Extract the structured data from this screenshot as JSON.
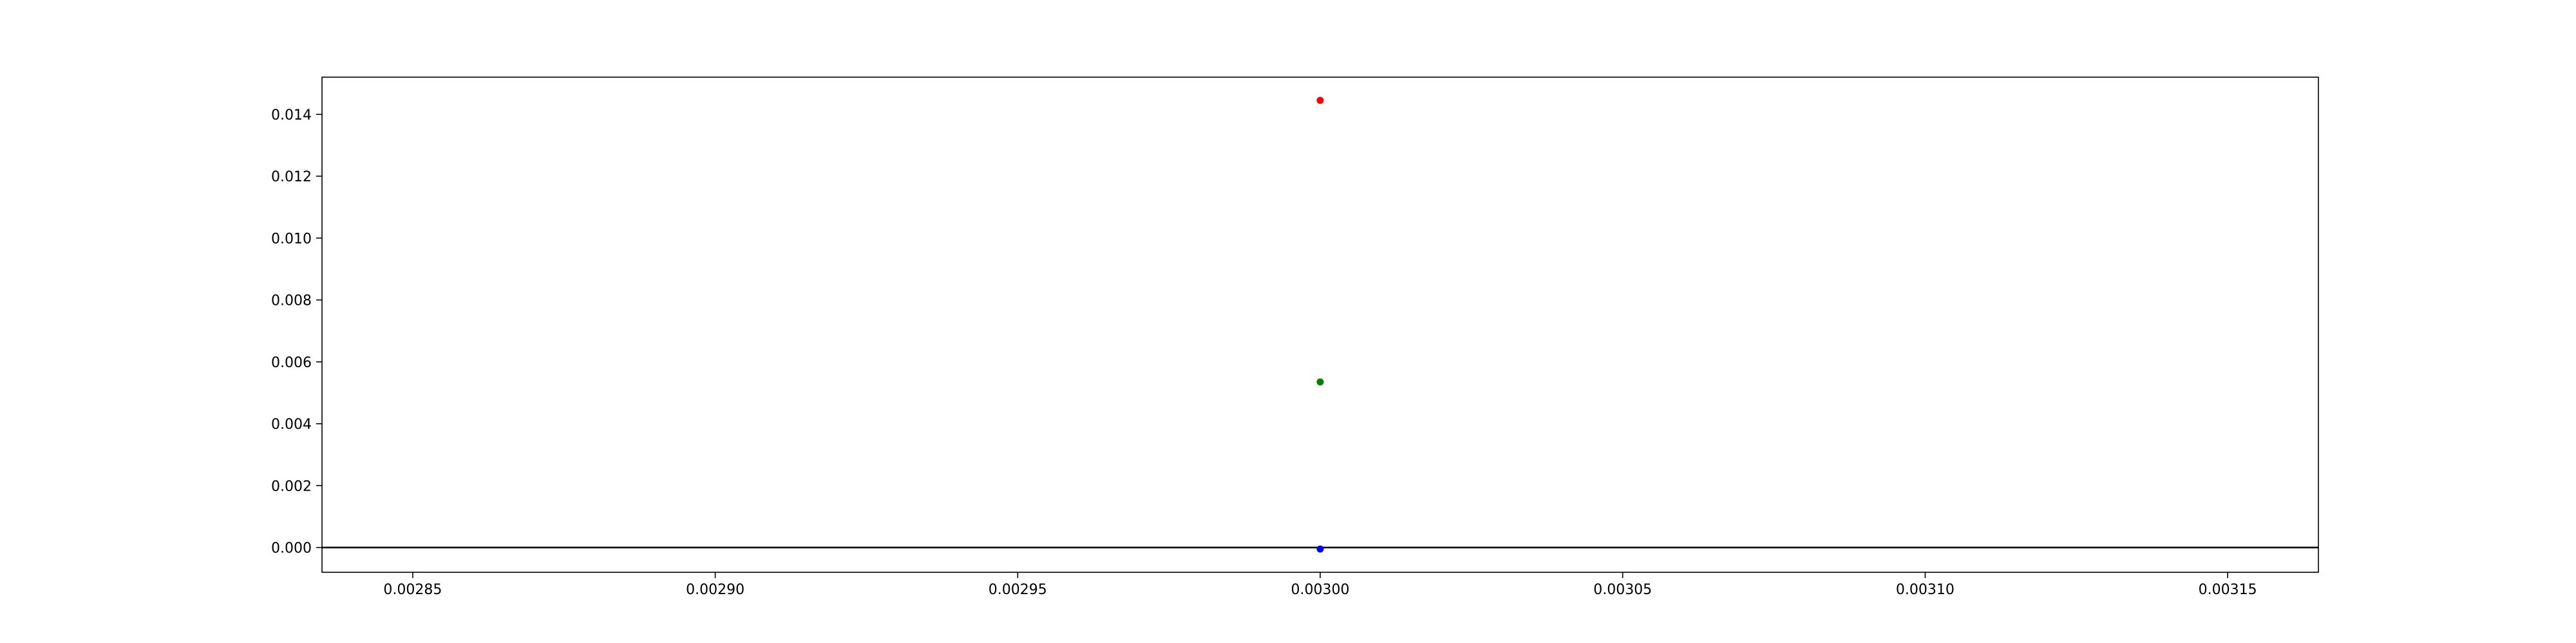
{
  "chart_data": {
    "type": "scatter",
    "title": "",
    "xlabel": "",
    "ylabel": "",
    "xlim": [
      0.002835,
      0.003165
    ],
    "ylim": [
      -0.0008,
      0.0152
    ],
    "grid": false,
    "legend": false,
    "x_ticks": [
      {
        "value": 0.00285,
        "label": "0.00285"
      },
      {
        "value": 0.0029,
        "label": "0.00290"
      },
      {
        "value": 0.00295,
        "label": "0.00295"
      },
      {
        "value": 0.003,
        "label": "0.00300"
      },
      {
        "value": 0.00305,
        "label": "0.00305"
      },
      {
        "value": 0.0031,
        "label": "0.00310"
      },
      {
        "value": 0.00315,
        "label": "0.00315"
      }
    ],
    "y_ticks": [
      {
        "value": 0.0,
        "label": "0.000"
      },
      {
        "value": 0.002,
        "label": "0.002"
      },
      {
        "value": 0.004,
        "label": "0.004"
      },
      {
        "value": 0.006,
        "label": "0.006"
      },
      {
        "value": 0.008,
        "label": "0.008"
      },
      {
        "value": 0.01,
        "label": "0.010"
      },
      {
        "value": 0.012,
        "label": "0.012"
      },
      {
        "value": 0.014,
        "label": "0.014"
      }
    ],
    "reference_lines": [
      {
        "axis": "y",
        "value": 0.0,
        "color": "#000000"
      }
    ],
    "series": [
      {
        "name": "red",
        "color": "#ff0000",
        "points": [
          {
            "x": 0.003,
            "y": 0.01445
          }
        ]
      },
      {
        "name": "green",
        "color": "#008000",
        "points": [
          {
            "x": 0.003,
            "y": 0.00535
          }
        ]
      },
      {
        "name": "blue",
        "color": "#0000ff",
        "points": [
          {
            "x": 0.003,
            "y": -5e-05
          }
        ]
      }
    ]
  }
}
